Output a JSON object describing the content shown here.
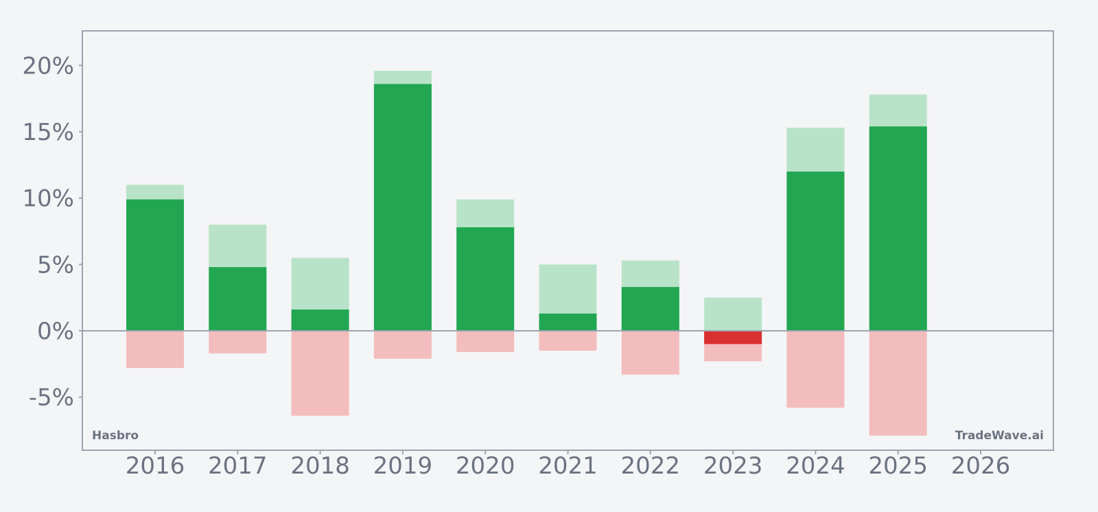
{
  "chart_data": {
    "type": "bar",
    "categories": [
      "2016",
      "2017",
      "2018",
      "2019",
      "2020",
      "2021",
      "2022",
      "2023",
      "2024",
      "2025",
      "2026"
    ],
    "series": [
      {
        "values": [
          9.9,
          4.8,
          1.6,
          18.6,
          7.8,
          1.3,
          3.3,
          -1.0,
          12.0,
          15.4,
          null
        ]
      },
      {
        "values": [
          11.0,
          8.0,
          5.5,
          19.6,
          9.9,
          5.0,
          5.3,
          2.5,
          15.3,
          17.8,
          null
        ]
      },
      {
        "values": [
          -2.8,
          -1.7,
          -6.4,
          -2.1,
          -1.6,
          -1.5,
          -3.3,
          -2.3,
          -5.8,
          -7.9,
          null
        ]
      }
    ],
    "yticks": [
      20,
      15,
      10,
      5,
      0,
      -5
    ],
    "ytick_labels": [
      "20%",
      "15%",
      "10%",
      "5%",
      "0%",
      "-5%"
    ],
    "ylim": [
      -9,
      22.6
    ],
    "grid": false,
    "colors": {
      "positive": "#22a652",
      "positive_light": "#b9e3c9",
      "negative": "#d93030",
      "negative_light": "#f3bdbd",
      "axis": "#9ca3af",
      "text": "#6b7280"
    }
  },
  "labels": {
    "left_corner": "Hasbro",
    "right_corner": "TradeWave.ai"
  }
}
